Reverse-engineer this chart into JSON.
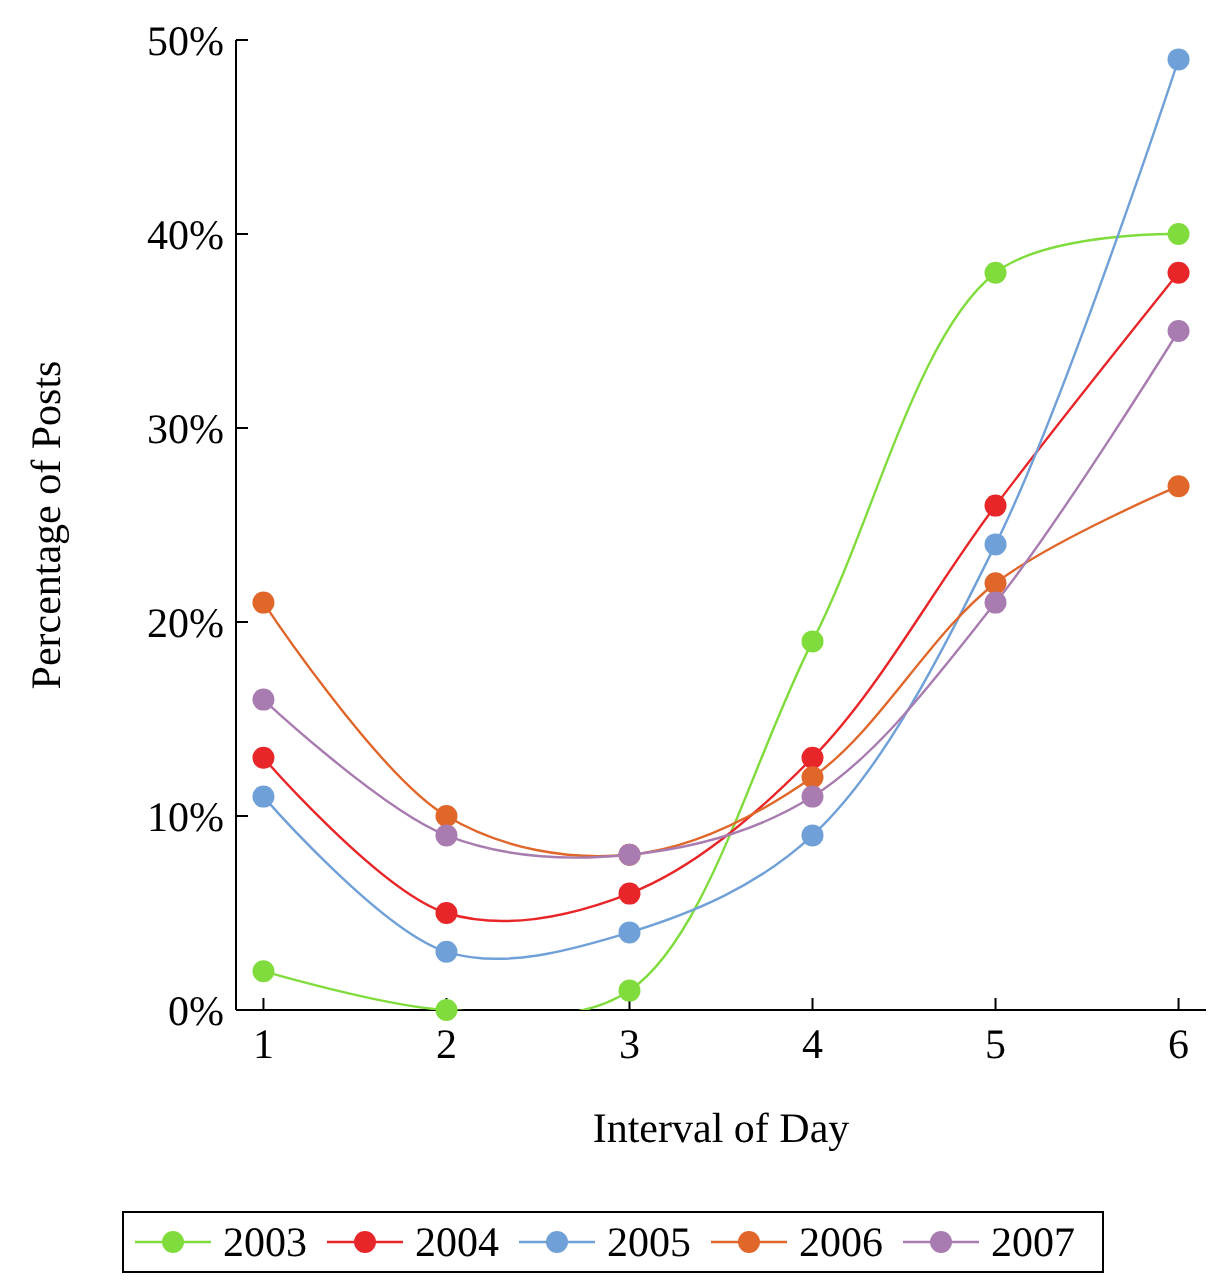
{
  "chart_data": {
    "type": "line",
    "xlabel": "Interval of Day",
    "ylabel": "Percentage of Posts",
    "x": [
      1,
      2,
      3,
      4,
      5,
      6
    ],
    "xlim": [
      0.85,
      6.15
    ],
    "xticks": [
      1,
      2,
      3,
      4,
      5,
      6
    ],
    "ylim": [
      0,
      50
    ],
    "yticks": [
      {
        "value": 0,
        "label": "0%"
      },
      {
        "value": 10,
        "label": "10%"
      },
      {
        "value": 20,
        "label": "20%"
      },
      {
        "value": 30,
        "label": "30%"
      },
      {
        "value": 40,
        "label": "40%"
      },
      {
        "value": 50,
        "label": "50%"
      }
    ],
    "marker": "circle",
    "line_style": "solid",
    "grid": false,
    "legend": "bottom",
    "series": [
      {
        "name": "2003",
        "color": "#80dc3c",
        "values": [
          2,
          0,
          1,
          19,
          38,
          40
        ]
      },
      {
        "name": "2004",
        "color": "#e8262a",
        "values": [
          13,
          5,
          6,
          13,
          26,
          38
        ]
      },
      {
        "name": "2005",
        "color": "#6fa0d8",
        "values": [
          11,
          3,
          4,
          9,
          24,
          49
        ]
      },
      {
        "name": "2006",
        "color": "#e0662a",
        "values": [
          21,
          10,
          8,
          12,
          22,
          27
        ]
      },
      {
        "name": "2007",
        "color": "#a87cb0",
        "values": [
          16,
          9,
          8,
          11,
          21,
          35
        ]
      }
    ]
  }
}
